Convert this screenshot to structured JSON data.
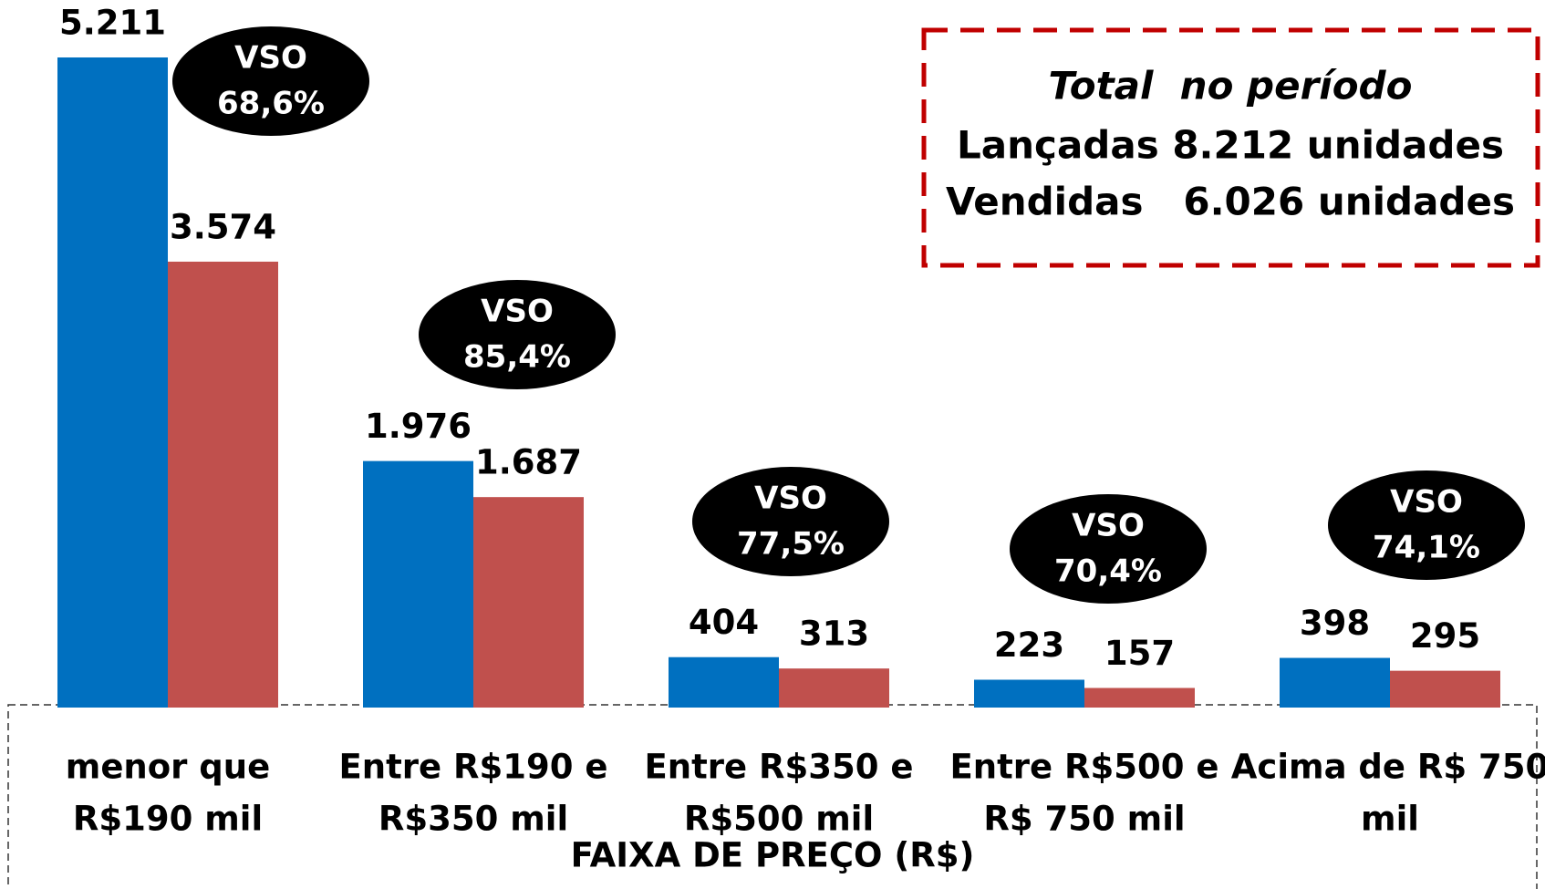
{
  "chart_data": {
    "type": "bar",
    "categories": [
      [
        "menor que",
        "R$190 mil"
      ],
      [
        "Entre R$190 e",
        "R$350 mil"
      ],
      [
        "Entre R$350 e",
        "R$500 mil"
      ],
      [
        "Entre R$500 e",
        "R$ 750 mil"
      ],
      [
        "Acima de R$ 750",
        "mil"
      ]
    ],
    "series": [
      {
        "color": "#0070c0",
        "values": [
          5211,
          1976,
          404,
          223,
          398
        ],
        "value_labels": [
          "5.211",
          "1.976",
          "404",
          "223",
          "398"
        ]
      },
      {
        "color": "#c0504d",
        "values": [
          3574,
          1687,
          313,
          157,
          295
        ],
        "value_labels": [
          "3.574",
          "1.687",
          "313",
          "157",
          "295"
        ]
      }
    ],
    "x_label": "FAIXA DE PREÇO (R$)",
    "annotations": [
      {
        "title": "VSO",
        "text": "68,6%"
      },
      {
        "title": "VSO",
        "text": "85,4%"
      },
      {
        "title": "VSO",
        "text": "77,5%"
      },
      {
        "title": "VSO",
        "text": "70,4%"
      },
      {
        "title": "VSO",
        "text": "74,1%"
      }
    ],
    "summary": {
      "title": "Total  no período",
      "lines": [
        "Lançadas 8.212 unidades",
        "Vendidas   6.026 unidades"
      ]
    }
  }
}
